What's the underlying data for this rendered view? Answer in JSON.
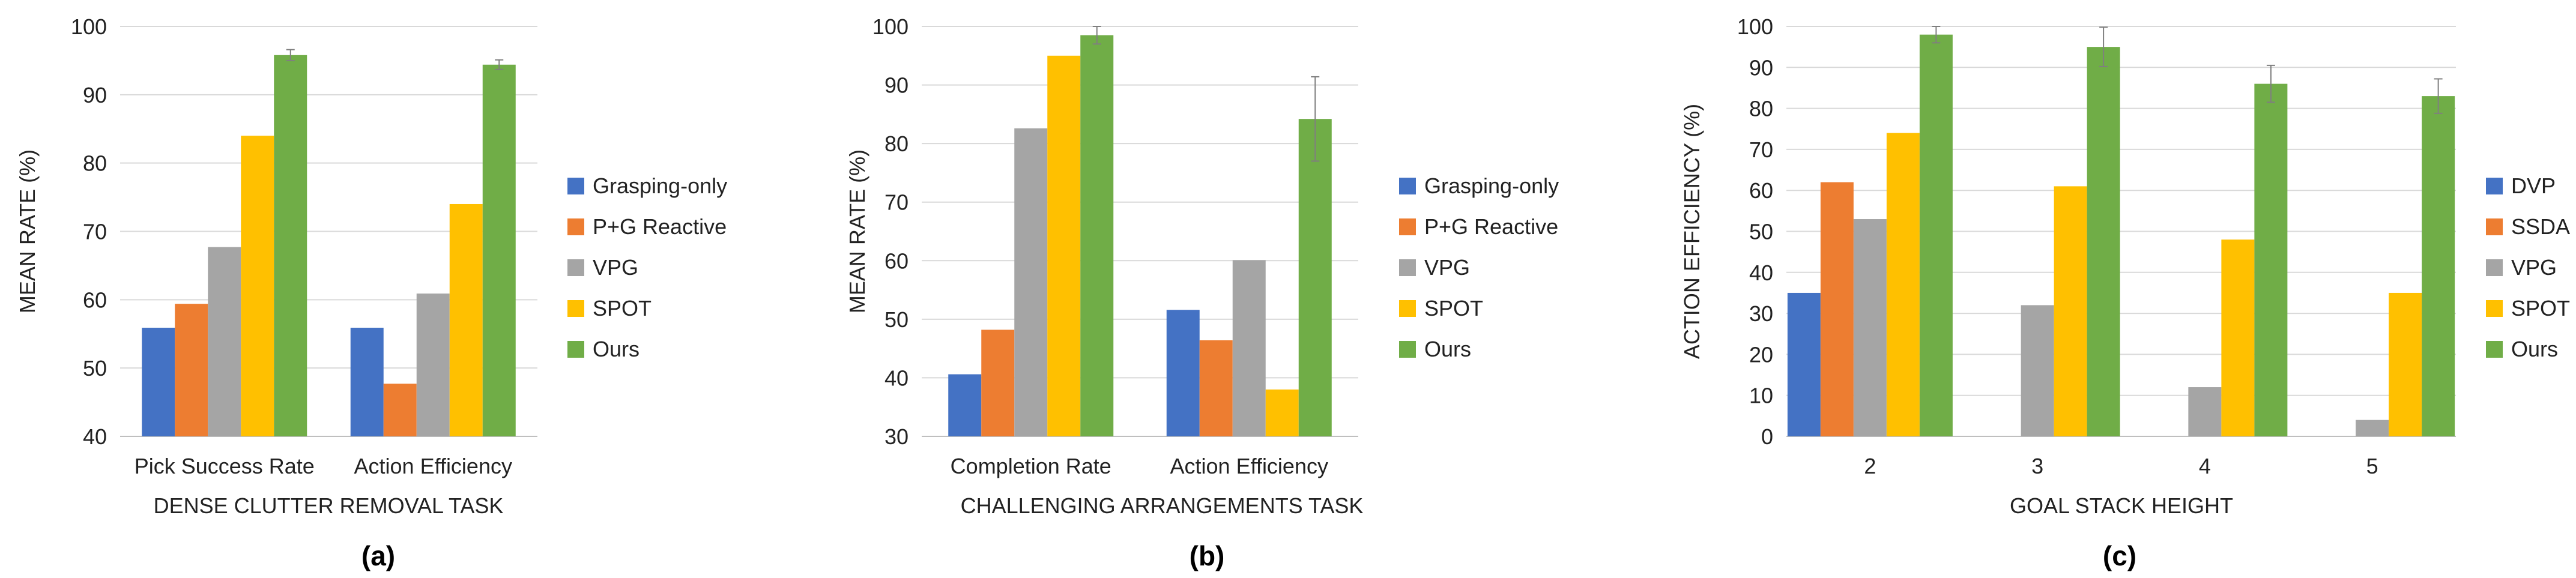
{
  "chart_data": [
    {
      "type": "bar",
      "panel_label": "(a)",
      "title": "",
      "xlabel": "DENSE CLUTTER REMOVAL TASK",
      "ylabel": "MEAN RATE (%)",
      "ylim": [
        40,
        100
      ],
      "ytick_step": 10,
      "grid": true,
      "legend_position": "right",
      "categories": [
        "Pick Success Rate",
        "Action Efficiency"
      ],
      "series": [
        {
          "name": "Grasping-only",
          "color": "#4472C4",
          "values": [
            55.9,
            55.9
          ],
          "errors": [
            null,
            null
          ]
        },
        {
          "name": "P+G Reactive",
          "color": "#ED7D31",
          "values": [
            59.4,
            47.7
          ],
          "errors": [
            null,
            null
          ]
        },
        {
          "name": "VPG",
          "color": "#A5A5A5",
          "values": [
            67.7,
            60.9
          ],
          "errors": [
            null,
            null
          ]
        },
        {
          "name": "SPOT",
          "color": "#FFC000",
          "values": [
            84.0,
            74.0
          ],
          "errors": [
            null,
            null
          ]
        },
        {
          "name": "Ours",
          "color": "#70AD47",
          "values": [
            95.8,
            94.4
          ],
          "errors": [
            0.8,
            0.7
          ]
        }
      ]
    },
    {
      "type": "bar",
      "panel_label": "(b)",
      "title": "",
      "xlabel": "CHALLENGING ARRANGEMENTS TASK",
      "ylabel": "MEAN RATE (%)",
      "ylim": [
        30,
        100
      ],
      "ytick_step": 10,
      "grid": true,
      "legend_position": "right",
      "categories": [
        "Completion Rate",
        "Action Efficiency"
      ],
      "series": [
        {
          "name": "Grasping-only",
          "color": "#4472C4",
          "values": [
            40.6,
            51.6
          ],
          "errors": [
            null,
            null
          ]
        },
        {
          "name": "P+G Reactive",
          "color": "#ED7D31",
          "values": [
            48.2,
            46.4
          ],
          "errors": [
            null,
            null
          ]
        },
        {
          "name": "VPG",
          "color": "#A5A5A5",
          "values": [
            82.6,
            60.1
          ],
          "errors": [
            null,
            null
          ]
        },
        {
          "name": "SPOT",
          "color": "#FFC000",
          "values": [
            95.0,
            38.0
          ],
          "errors": [
            null,
            null
          ]
        },
        {
          "name": "Ours",
          "color": "#70AD47",
          "values": [
            98.5,
            84.2
          ],
          "errors": [
            1.5,
            7.2
          ]
        }
      ]
    },
    {
      "type": "bar",
      "panel_label": "(c)",
      "title": "",
      "xlabel": "GOAL STACK HEIGHT",
      "ylabel": "ACTION EFFICIENCY (%)",
      "ylim": [
        0,
        100
      ],
      "ytick_step": 10,
      "grid": true,
      "legend_position": "right",
      "categories": [
        "2",
        "3",
        "4",
        "5"
      ],
      "series": [
        {
          "name": "DVP",
          "color": "#4472C4",
          "values": [
            35,
            null,
            null,
            null
          ],
          "errors": [
            null,
            null,
            null,
            null
          ]
        },
        {
          "name": "SSDA",
          "color": "#ED7D31",
          "values": [
            62,
            null,
            null,
            null
          ],
          "errors": [
            null,
            null,
            null,
            null
          ]
        },
        {
          "name": "VPG",
          "color": "#A5A5A5",
          "values": [
            53,
            32,
            12,
            4
          ],
          "errors": [
            null,
            null,
            null,
            null
          ]
        },
        {
          "name": "SPOT",
          "color": "#FFC000",
          "values": [
            74,
            61,
            48,
            35
          ],
          "errors": [
            null,
            null,
            null,
            null
          ]
        },
        {
          "name": "Ours",
          "color": "#70AD47",
          "values": [
            98,
            95,
            86,
            83
          ],
          "errors": [
            2,
            4.8,
            4.5,
            4.2
          ]
        }
      ]
    }
  ]
}
